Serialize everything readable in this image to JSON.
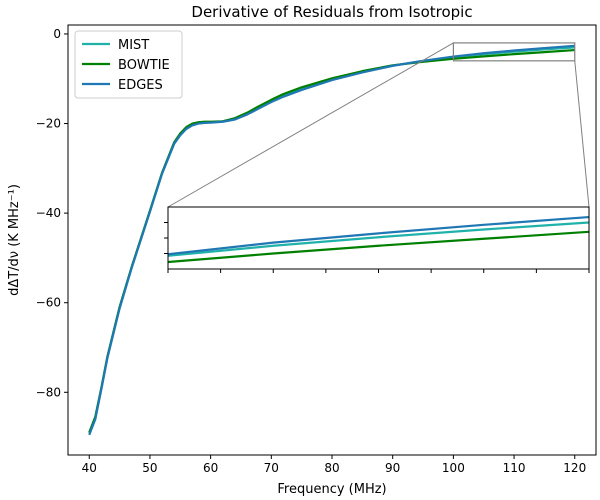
{
  "chart_data": {
    "type": "line",
    "title": "Derivative of Residuals from Isotropic",
    "xlabel": "Frequency (MHz)",
    "ylabel": "dΔT/dν (K MHz⁻¹)",
    "xlim": [
      36.5,
      123.5
    ],
    "ylim": [
      -94,
      2
    ],
    "xticks": [
      40,
      50,
      60,
      70,
      80,
      90,
      100,
      110,
      120
    ],
    "yticks": [
      0,
      -20,
      -40,
      -60,
      -80
    ],
    "grid": false,
    "legend": "top-left",
    "x": [
      40,
      41,
      42,
      43,
      45,
      47,
      50,
      52,
      54,
      55,
      56,
      57,
      58,
      59,
      60,
      62,
      64,
      66,
      68,
      70,
      72,
      75,
      80,
      85,
      90,
      95,
      100,
      105,
      110,
      115,
      120
    ],
    "series": [
      {
        "name": "MIST",
        "color": "#20b2aa",
        "values": [
          -89,
          -85.5,
          -79,
          -72,
          -61,
          -52,
          -39.5,
          -31,
          -24.2,
          -22.3,
          -21,
          -20.2,
          -19.9,
          -19.75,
          -19.7,
          -19.5,
          -18.9,
          -17.8,
          -16.4,
          -15.1,
          -13.8,
          -12.3,
          -10.1,
          -8.5,
          -7.1,
          -6,
          -5.15,
          -4.5,
          -3.95,
          -3.45,
          -3
        ]
      },
      {
        "name": "BOWTIE",
        "color": "#008000",
        "values": [
          -89,
          -85.5,
          -79,
          -72,
          -61,
          -52,
          -39.5,
          -31,
          -24.2,
          -22.2,
          -20.8,
          -20,
          -19.7,
          -19.6,
          -19.6,
          -19.5,
          -18.8,
          -17.6,
          -16.1,
          -14.7,
          -13.4,
          -11.9,
          -9.9,
          -8.3,
          -7,
          -6.2,
          -5.55,
          -5,
          -4.5,
          -4.05,
          -3.6
        ]
      },
      {
        "name": "EDGES",
        "color": "#1f77b4",
        "values": [
          -89.5,
          -86,
          -79.3,
          -72.3,
          -61.3,
          -52.2,
          -39.7,
          -31.2,
          -24.5,
          -22.6,
          -21.2,
          -20.4,
          -20,
          -19.85,
          -19.8,
          -19.6,
          -19.1,
          -18,
          -16.6,
          -15.2,
          -14,
          -12.5,
          -10.3,
          -8.6,
          -7.1,
          -6,
          -5.05,
          -4.3,
          -3.7,
          -3.15,
          -2.65
        ]
      }
    ],
    "inset": {
      "xlim": [
        100,
        120
      ],
      "ylim": [
        -6,
        -2
      ],
      "position": "center-right"
    }
  }
}
